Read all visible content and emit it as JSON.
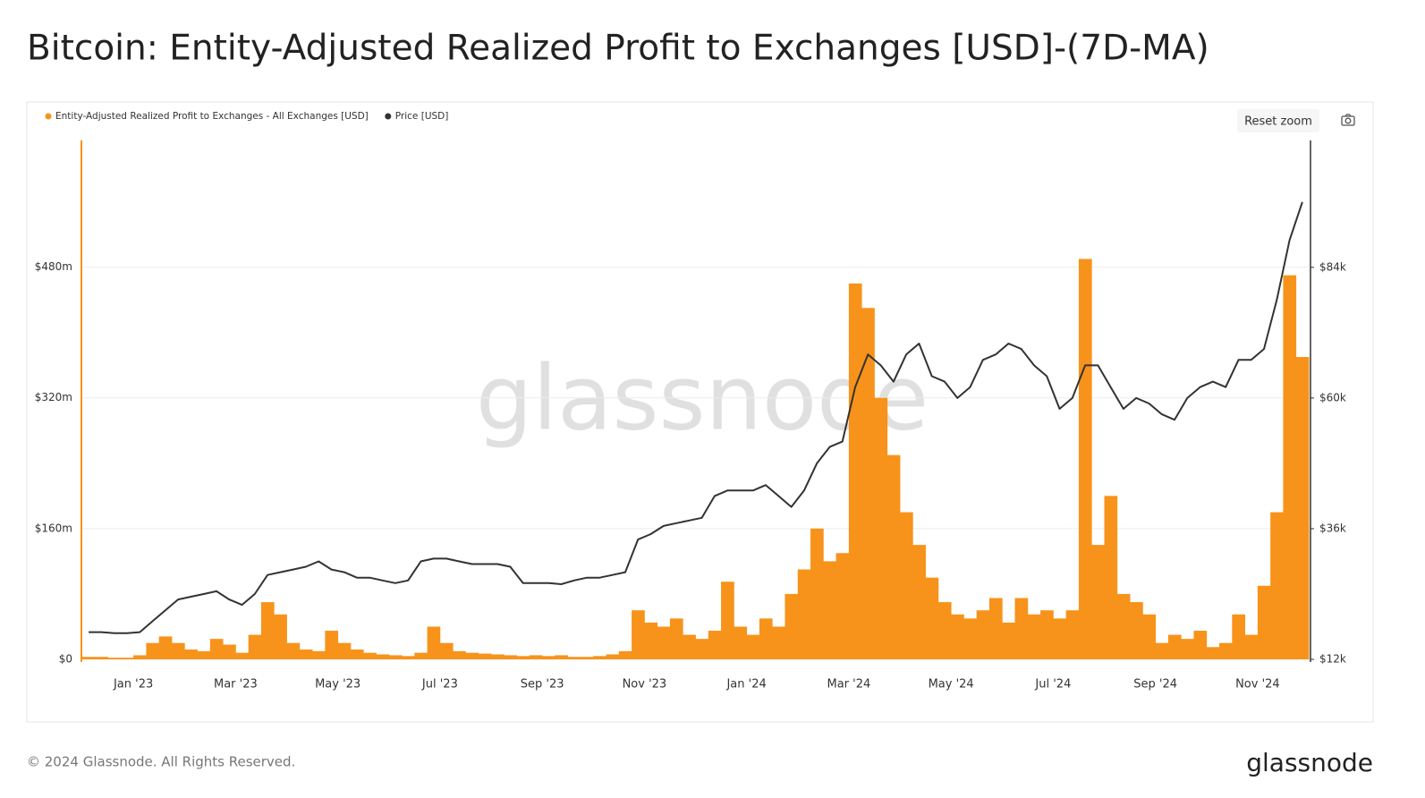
{
  "chart_data": {
    "type": "bar",
    "title": "Bitcoin: Entity-Adjusted Realized Profit to Exchanges [USD]-(7D-MA)",
    "reset_zoom": "Reset zoom",
    "watermark": "glassnode",
    "footer": "© 2024 Glassnode. All Rights Reserved.",
    "logo": "glassnode",
    "categories": [
      null,
      null,
      null,
      null,
      "Jan '23",
      null,
      null,
      null,
      null,
      null,
      null,
      null,
      "Mar '23",
      null,
      null,
      null,
      null,
      null,
      null,
      null,
      "May '23",
      null,
      null,
      null,
      null,
      null,
      null,
      null,
      "Jul '23",
      null,
      null,
      null,
      null,
      null,
      null,
      null,
      "Sep '23",
      null,
      null,
      null,
      null,
      null,
      null,
      null,
      "Nov '23",
      null,
      null,
      null,
      null,
      null,
      null,
      null,
      "Jan '24",
      null,
      null,
      null,
      null,
      null,
      null,
      null,
      "Mar '24",
      null,
      null,
      null,
      null,
      null,
      null,
      null,
      "May '24",
      null,
      null,
      null,
      null,
      null,
      null,
      null,
      "Jul '24",
      null,
      null,
      null,
      null,
      null,
      null,
      null,
      "Sep '24",
      null,
      null,
      null,
      null,
      null,
      null,
      null,
      "Nov '24",
      null,
      null,
      null
    ],
    "series": [
      {
        "name": "Entity-Adjusted Realized Profit to Exchanges - All Exchanges [USD]",
        "color": "#f7931a",
        "type": "bar",
        "values": [
          3000000,
          3000000,
          2000000,
          2000000,
          5000000,
          20000000,
          28000000,
          20000000,
          12000000,
          10000000,
          25000000,
          18000000,
          8000000,
          30000000,
          70000000,
          55000000,
          20000000,
          12000000,
          10000000,
          35000000,
          20000000,
          12000000,
          8000000,
          6000000,
          5000000,
          4000000,
          8000000,
          40000000,
          20000000,
          10000000,
          8000000,
          7000000,
          6000000,
          5000000,
          4000000,
          5000000,
          4000000,
          5000000,
          3000000,
          3000000,
          4000000,
          6000000,
          10000000,
          60000000,
          45000000,
          40000000,
          50000000,
          30000000,
          25000000,
          35000000,
          95000000,
          40000000,
          30000000,
          50000000,
          40000000,
          80000000,
          110000000,
          160000000,
          120000000,
          130000000,
          460000000,
          430000000,
          320000000,
          250000000,
          180000000,
          140000000,
          100000000,
          70000000,
          55000000,
          50000000,
          60000000,
          75000000,
          45000000,
          75000000,
          55000000,
          60000000,
          50000000,
          60000000,
          490000000,
          140000000,
          200000000,
          80000000,
          70000000,
          55000000,
          20000000,
          30000000,
          25000000,
          35000000,
          15000000,
          20000000,
          55000000,
          30000000,
          90000000,
          180000000,
          470000000,
          370000000
        ]
      },
      {
        "name": "Price [USD]",
        "color": "#333333",
        "type": "line",
        "axis": "y2",
        "values": [
          17000,
          17000,
          16800,
          16800,
          17000,
          19000,
          21000,
          23000,
          23500,
          24000,
          24500,
          23000,
          22000,
          24000,
          27500,
          28000,
          28500,
          29000,
          30000,
          28500,
          28000,
          27000,
          27000,
          26500,
          26000,
          26500,
          30000,
          30500,
          30500,
          30000,
          29500,
          29500,
          29500,
          29000,
          26000,
          26000,
          26000,
          25800,
          26500,
          27000,
          27000,
          27500,
          28000,
          34000,
          35000,
          36500,
          37000,
          37500,
          38000,
          42000,
          43000,
          43000,
          43000,
          44000,
          42000,
          40000,
          43000,
          48000,
          51000,
          52000,
          62000,
          68000,
          66000,
          63000,
          68000,
          70000,
          64000,
          63000,
          60000,
          62000,
          67000,
          68000,
          70000,
          69000,
          66000,
          64000,
          58000,
          60000,
          66000,
          66000,
          62000,
          58000,
          60000,
          59000,
          57000,
          56000,
          60000,
          62000,
          63000,
          62000,
          67000,
          67000,
          69000,
          78000,
          89000,
          96000
        ]
      }
    ],
    "ylim": [
      0,
      635000000
    ],
    "yticks": [
      {
        "value": 0,
        "label": "$0"
      },
      {
        "value": 160000000,
        "label": "$160m"
      },
      {
        "value": 320000000,
        "label": "$320m"
      },
      {
        "value": 480000000,
        "label": "$480m"
      }
    ],
    "y2lim": [
      12000,
      107300
    ],
    "y2ticks": [
      {
        "value": 12000,
        "label": "$12k"
      },
      {
        "value": 36000,
        "label": "$36k"
      },
      {
        "value": 60000,
        "label": "$60k"
      },
      {
        "value": 84000,
        "label": "$84k"
      }
    ],
    "grid": true,
    "legend": "top-left"
  }
}
